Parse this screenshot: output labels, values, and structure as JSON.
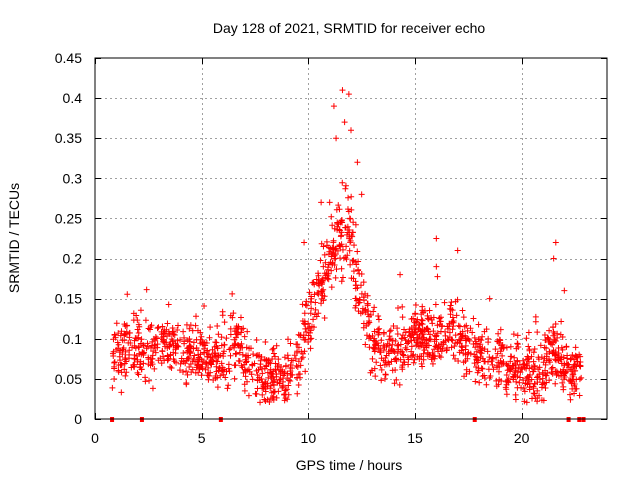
{
  "chart_data": {
    "type": "scatter",
    "title": "Day 128 of 2021, SRMTID for receiver echo",
    "xlabel": "GPS time / hours",
    "ylabel": "SRMTID / TECUs",
    "xlim": [
      0,
      24
    ],
    "ylim": [
      0,
      0.45
    ],
    "xticks": [
      0,
      5,
      10,
      15,
      20
    ],
    "xtick_labels": [
      "0",
      "5",
      "10",
      "15",
      "20"
    ],
    "yticks": [
      0,
      0.05,
      0.1,
      0.15,
      0.2,
      0.25,
      0.3,
      0.35,
      0.4,
      0.45
    ],
    "ytick_labels": [
      "0",
      "0.05",
      "0.1",
      "0.15",
      "0.2",
      "0.25",
      "0.3",
      "0.35",
      "0.4",
      "0.45"
    ],
    "grid": true,
    "marker": "+",
    "color": "#ff0000",
    "profile": [
      [
        0.8,
        0.09
      ],
      [
        1.5,
        0.08
      ],
      [
        2.5,
        0.085
      ],
      [
        3.5,
        0.095
      ],
      [
        4.5,
        0.085
      ],
      [
        5.5,
        0.075
      ],
      [
        6.2,
        0.08
      ],
      [
        6.8,
        0.1
      ],
      [
        7.3,
        0.06
      ],
      [
        8.0,
        0.05
      ],
      [
        8.8,
        0.05
      ],
      [
        9.5,
        0.07
      ],
      [
        10.0,
        0.12
      ],
      [
        10.5,
        0.16
      ],
      [
        11.0,
        0.2
      ],
      [
        11.5,
        0.23
      ],
      [
        12.0,
        0.22
      ],
      [
        12.5,
        0.15
      ],
      [
        13.0,
        0.09
      ],
      [
        13.5,
        0.08
      ],
      [
        14.0,
        0.09
      ],
      [
        14.5,
        0.095
      ],
      [
        15.0,
        0.1
      ],
      [
        15.5,
        0.1
      ],
      [
        16.0,
        0.105
      ],
      [
        16.5,
        0.1
      ],
      [
        17.0,
        0.11
      ],
      [
        17.5,
        0.08
      ],
      [
        18.0,
        0.08
      ],
      [
        18.5,
        0.075
      ],
      [
        19.0,
        0.07
      ],
      [
        19.5,
        0.065
      ],
      [
        20.0,
        0.06
      ],
      [
        20.5,
        0.055
      ],
      [
        21.0,
        0.06
      ],
      [
        21.5,
        0.09
      ],
      [
        22.0,
        0.06
      ],
      [
        22.4,
        0.05
      ],
      [
        22.8,
        0.08
      ]
    ],
    "spread": 0.028,
    "point_count": 1650,
    "notable_peaks": [
      {
        "x": 11.6,
        "y": 0.41
      },
      {
        "x": 11.9,
        "y": 0.405
      },
      {
        "x": 11.2,
        "y": 0.39
      },
      {
        "x": 11.7,
        "y": 0.37
      },
      {
        "x": 11.3,
        "y": 0.35
      },
      {
        "x": 12.0,
        "y": 0.36
      },
      {
        "x": 12.3,
        "y": 0.32
      },
      {
        "x": 12.5,
        "y": 0.28
      },
      {
        "x": 11.0,
        "y": 0.27
      },
      {
        "x": 10.6,
        "y": 0.27
      },
      {
        "x": 9.8,
        "y": 0.22
      },
      {
        "x": 16.0,
        "y": 0.225
      },
      {
        "x": 17.0,
        "y": 0.21
      },
      {
        "x": 21.6,
        "y": 0.22
      },
      {
        "x": 21.5,
        "y": 0.2
      },
      {
        "x": 16.0,
        "y": 0.19
      },
      {
        "x": 14.3,
        "y": 0.18
      },
      {
        "x": 18.5,
        "y": 0.15
      },
      {
        "x": 22.0,
        "y": 0.16
      }
    ],
    "gap_markers_x": [
      0.8,
      2.2,
      5.9,
      17.8,
      22.2,
      22.7,
      22.9
    ]
  }
}
